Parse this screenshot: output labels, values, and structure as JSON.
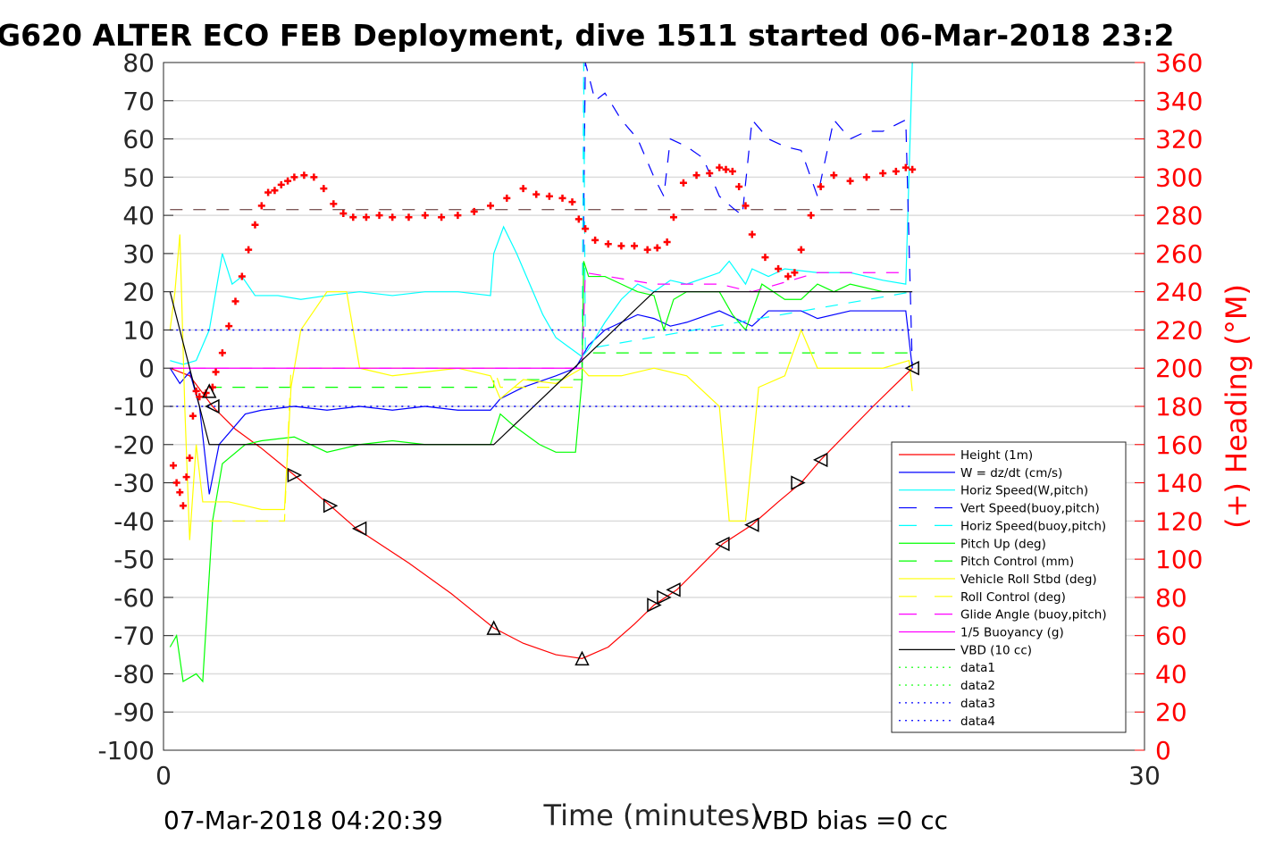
{
  "chart_data": {
    "type": "line",
    "title": "G620 ALTER ECO FEB Deployment, dive 1511 started 06-Mar-2018 23:2",
    "xlabel": "Time (minutes)",
    "ylabel_right": "(+) Heading (°M)",
    "footer_left": "07-Mar-2018 04:20:39",
    "footer_right": "VBD bias =0 cc",
    "xlim": [
      0,
      30
    ],
    "ylim": [
      -100,
      80
    ],
    "ylim_right": [
      0,
      360
    ],
    "xticks": [
      "0",
      "30"
    ],
    "yticks": [
      "80",
      "70",
      "60",
      "50",
      "40",
      "30",
      "20",
      "10",
      "0",
      "-10",
      "-20",
      "-30",
      "-40",
      "-50",
      "-60",
      "-70",
      "-80",
      "-90",
      "-100"
    ],
    "yticks_right": [
      "360",
      "340",
      "320",
      "300",
      "280",
      "260",
      "240",
      "220",
      "200",
      "180",
      "160",
      "140",
      "120",
      "100",
      "80",
      "60",
      "40",
      "20",
      "0"
    ],
    "grid": true,
    "legend_position": "lower-right",
    "series": [
      {
        "name": "Height (1m)",
        "color": "#ff0000",
        "style": "solid",
        "x": [
          0.2,
          0.8,
          1.5,
          2.2,
          3,
          4,
          5.1,
          5.9,
          7.5,
          8.8,
          10.1,
          11,
          12,
          12.8,
          13.6,
          14.4,
          15,
          15.7,
          16.4,
          17.1,
          18,
          18.8,
          19.5,
          20.1,
          20.9,
          21.7,
          22.3,
          22.9
        ],
        "y": [
          0,
          -2,
          -10,
          -16,
          -21,
          -28,
          -36,
          -42,
          -51,
          -59,
          -68,
          -72,
          -75,
          -76,
          -73,
          -67,
          -62,
          -58,
          -52,
          -46,
          -41,
          -35,
          -30,
          -24,
          -17,
          -10,
          -5,
          0
        ]
      },
      {
        "name": "W = dz/dt (cm/s)",
        "color": "#0000ff",
        "style": "solid",
        "x": [
          0.2,
          0.5,
          0.8,
          1.1,
          1.4,
          1.7,
          2.5,
          3,
          4,
          5,
          6,
          7,
          8,
          9,
          10,
          10.3,
          11,
          12,
          12.6,
          13,
          13.5,
          14,
          14.5,
          15,
          15.5,
          16,
          17,
          17.5,
          18,
          18.5,
          19.5,
          20,
          21,
          22,
          22.7,
          22.9
        ],
        "y": [
          0,
          -4,
          -1,
          -10,
          -33,
          -20,
          -12,
          -11,
          -10,
          -11,
          -10,
          -11,
          -10,
          -11,
          -11,
          -8,
          -5,
          -2,
          0,
          6,
          10,
          12,
          14,
          13,
          11,
          12,
          15,
          13,
          11,
          15,
          15,
          13,
          15,
          15,
          15,
          0
        ]
      },
      {
        "name": "Horiz Speed(W,pitch)",
        "color": "#00ffff",
        "style": "solid",
        "x": [
          0.2,
          0.6,
          1.0,
          1.4,
          1.8,
          2.1,
          2.4,
          2.8,
          3.5,
          4.2,
          5,
          6,
          7,
          8,
          9,
          10,
          10.1,
          10.4,
          10.8,
          11.2,
          11.6,
          12,
          12.8,
          13,
          13.5,
          14,
          14.5,
          15,
          15.5,
          16,
          17,
          17.3,
          17.8,
          18,
          18.5,
          19,
          20,
          21,
          22,
          22.7,
          22.9
        ],
        "y": [
          2,
          1,
          2,
          10,
          30,
          22,
          24,
          19,
          19,
          18,
          19,
          20,
          19,
          20,
          20,
          19,
          30,
          37,
          30,
          22,
          14,
          8,
          3,
          5,
          12,
          18,
          22,
          20,
          23,
          22,
          25,
          28,
          22,
          26,
          24,
          26,
          25,
          25,
          23,
          22,
          80
        ]
      },
      {
        "name": "Vert Speed(buoy,pitch)",
        "color": "#0000ff",
        "style": "dash",
        "x": [
          12.8,
          12.9,
          13.2,
          13.5,
          14,
          14.5,
          15,
          15.3,
          15.5,
          16,
          16.5,
          17,
          17.4,
          17.7,
          18,
          18.5,
          19,
          19.5,
          20,
          20.5,
          21,
          21.5,
          22,
          22.7,
          22.9
        ],
        "y": [
          0,
          80,
          70,
          72,
          65,
          60,
          50,
          45,
          60,
          58,
          55,
          45,
          42,
          40,
          65,
          60,
          58,
          57,
          45,
          65,
          60,
          62,
          62,
          65,
          0
        ]
      },
      {
        "name": "Horiz Speed(buoy,pitch)",
        "color": "#00ffff",
        "style": "dash",
        "x": [
          12.8,
          12.85,
          12.9,
          22.9
        ],
        "y": [
          0,
          80,
          5,
          20
        ]
      },
      {
        "name": "Pitch Up (deg)",
        "color": "#00ff00",
        "style": "solid",
        "x": [
          0.2,
          0.4,
          0.6,
          1.0,
          1.2,
          1.5,
          1.8,
          2.5,
          3,
          4,
          5,
          6,
          7,
          8,
          9,
          10,
          10.3,
          10.7,
          11.5,
          12,
          12.6,
          12.8,
          12.85,
          13,
          13.5,
          14,
          14.5,
          15,
          15.3,
          15.6,
          16,
          17,
          17.4,
          17.8,
          18.3,
          19,
          19.5,
          20,
          20.5,
          21,
          22,
          22.7
        ],
        "y": [
          -73,
          -70,
          -82,
          -80,
          -82,
          -40,
          -25,
          -20,
          -19,
          -18,
          -22,
          -20,
          -19,
          -20,
          -20,
          -20,
          -12,
          -15,
          -20,
          -22,
          -22,
          -3,
          28,
          24,
          24,
          22,
          20,
          19,
          10,
          18,
          20,
          20,
          14,
          10,
          22,
          18,
          18,
          22,
          20,
          22,
          20,
          20
        ]
      },
      {
        "name": "Pitch Control (mm)",
        "color": "#00ff00",
        "style": "dash",
        "x": [
          1.4,
          10.1,
          10.1,
          12.8,
          12.8,
          22.9
        ],
        "y": [
          -5,
          -5,
          -3,
          -3,
          4,
          4
        ]
      },
      {
        "name": "Vehicle Roll Stbd (deg)",
        "color": "#ffff00",
        "style": "solid",
        "x": [
          0.2,
          0.35,
          0.5,
          0.65,
          0.8,
          1.0,
          1.2,
          1.5,
          2,
          2.5,
          3,
          3.7,
          3.9,
          4.2,
          5,
          5.6,
          6,
          6.5,
          7,
          8,
          9,
          10,
          10.3,
          11,
          12,
          12.8,
          13,
          14,
          15,
          16,
          17,
          17.3,
          17.8,
          18.2,
          19,
          19.5,
          20,
          21,
          22,
          22.8,
          22.9
        ],
        "y": [
          10,
          20,
          35,
          -10,
          -45,
          -20,
          -35,
          -35,
          -35,
          -36,
          -37,
          -37,
          -5,
          10,
          20,
          20,
          0,
          -1,
          -2,
          -1,
          0,
          -2,
          -8,
          -3,
          -4,
          0,
          -2,
          -2,
          0,
          -2,
          -10,
          -40,
          -40,
          -5,
          -2,
          10,
          0,
          0,
          0,
          2,
          -6
        ]
      },
      {
        "name": "Roll Control (deg)",
        "color": "#ffff00",
        "style": "dash",
        "x": [
          1.4,
          3.7,
          3.9,
          10.1,
          10.3,
          12.8
        ],
        "y": [
          -40,
          -40,
          0,
          0,
          -5,
          -5
        ]
      },
      {
        "name": "Glide Angle (buoy,pitch)",
        "color": "#ff00ff",
        "style": "dash",
        "x": [
          0.2,
          12.8,
          12.9,
          15,
          17,
          18,
          20,
          22.7
        ],
        "y": [
          0,
          0,
          25,
          22,
          22,
          20,
          25,
          25
        ]
      },
      {
        "name": "1/5 Buoyancy (g)",
        "color": "#ff00ff",
        "style": "solid",
        "x": [
          0.2,
          12.8
        ],
        "y": [
          0,
          0
        ]
      },
      {
        "name": "VBD (10 cc)",
        "color": "#000000",
        "style": "solid",
        "x": [
          0.2,
          1.4,
          10.1,
          15,
          22.9
        ],
        "y": [
          20,
          -20,
          -20,
          20,
          20
        ]
      },
      {
        "name": "data1",
        "color": "#00ff00",
        "style": "dot",
        "x": [],
        "y": []
      },
      {
        "name": "data2",
        "color": "#00ff00",
        "style": "dot",
        "x": [],
        "y": []
      },
      {
        "name": "data3",
        "color": "#0000ff",
        "style": "dot",
        "x": [
          0.2,
          22.9
        ],
        "y": [
          10,
          10
        ]
      },
      {
        "name": "data4",
        "color": "#0000ff",
        "style": "dot",
        "x": [
          0.2,
          22.9
        ],
        "y": [
          -10,
          -10
        ]
      }
    ],
    "reference_line": {
      "y": 41.5,
      "color": "#552222"
    },
    "heading": {
      "color": "#ff0000",
      "x": [
        0.3,
        0.4,
        0.5,
        0.6,
        0.7,
        0.8,
        0.9,
        1.0,
        1.1,
        1.3,
        1.5,
        1.6,
        1.8,
        2.0,
        2.2,
        2.4,
        2.6,
        2.8,
        3.0,
        3.2,
        3.4,
        3.6,
        3.8,
        4.0,
        4.3,
        4.6,
        4.9,
        5.2,
        5.5,
        5.8,
        6.2,
        6.6,
        7.0,
        7.5,
        8.0,
        8.5,
        9.0,
        9.5,
        10.0,
        10.5,
        11.0,
        11.4,
        11.8,
        12.2,
        12.5,
        12.7,
        12.9,
        13.2,
        13.6,
        14.0,
        14.4,
        14.8,
        15.1,
        15.4,
        15.6,
        15.9,
        16.3,
        16.7,
        17.0,
        17.2,
        17.4,
        17.6,
        17.8,
        18.0,
        18.4,
        18.8,
        19.1,
        19.3,
        19.5,
        19.8,
        20.1,
        20.5,
        21,
        21.5,
        22,
        22.4,
        22.7,
        22.9
      ],
      "y": [
        149,
        140,
        135,
        128,
        143,
        153,
        175,
        188,
        185,
        187,
        190,
        198,
        208,
        222,
        235,
        248,
        262,
        275,
        285,
        292,
        293,
        296,
        298,
        300,
        301,
        300,
        294,
        286,
        281,
        279,
        279,
        280,
        279,
        279,
        280,
        279,
        280,
        282,
        285,
        289,
        294,
        291,
        290,
        289,
        287,
        278,
        273,
        267,
        265,
        264,
        264,
        262,
        263,
        266,
        279,
        297,
        301,
        302,
        305,
        304,
        303,
        295,
        285,
        270,
        258,
        252,
        248,
        250,
        262,
        280,
        295,
        301,
        298,
        300,
        302,
        303,
        305,
        304
      ]
    },
    "markers": {
      "x": [
        1.4,
        1.5,
        4.0,
        5.1,
        6.0,
        10.1,
        12.8,
        15.0,
        15.3,
        15.6,
        17.1,
        18.0,
        19.4,
        20.1,
        22.9
      ],
      "y": [
        -6,
        -10,
        -28,
        -36,
        -42,
        -68,
        -76,
        -62,
        -60,
        -58,
        -46,
        -41,
        -30,
        -24,
        0
      ],
      "dir": [
        "up",
        "left",
        "right",
        "right",
        "left",
        "up",
        "up",
        "right",
        "right",
        "left",
        "left",
        "left",
        "right",
        "left",
        "left"
      ]
    }
  }
}
